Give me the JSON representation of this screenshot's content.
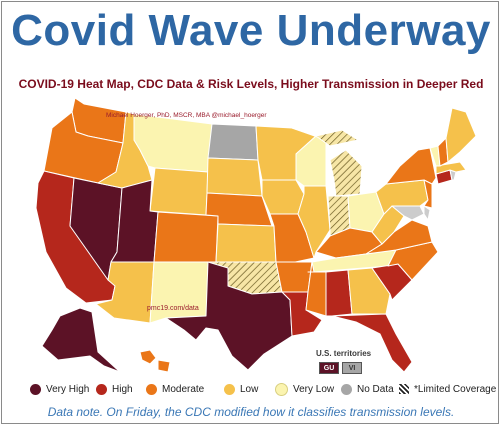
{
  "header": {
    "title": "Covid Wave Underway",
    "subtitle": "COVID-19 Heat Map, CDC Data & Risk Levels, Higher Transmission in Deeper Red"
  },
  "credit": "Michael Hoerger, PhD, MSCR, MBA  @michael_hoerger",
  "source": "pmc19.com/data",
  "colors": {
    "very_high": "#5c1226",
    "high": "#b5271c",
    "moderate": "#ea7618",
    "low": "#f5c14b",
    "very_low": "#fbf4b0",
    "no_data": "#a6a6a6",
    "hatch": "#7a6a2a"
  },
  "territories": {
    "label": "U.S. territories",
    "items": [
      {
        "code": "GU",
        "level": "very_high"
      },
      {
        "code": "VI",
        "level": "no_data"
      }
    ]
  },
  "legend": [
    {
      "label": "Very High",
      "level": "very_high"
    },
    {
      "label": "High",
      "level": "high"
    },
    {
      "label": "Moderate",
      "level": "moderate"
    },
    {
      "label": "Low",
      "level": "low"
    },
    {
      "label": "Very Low",
      "level": "very_low"
    },
    {
      "label": "No Data",
      "level": "no_data"
    },
    {
      "label": "*Limited Coverage",
      "level": "hatch"
    }
  ],
  "note": "Data note. On Friday, the CDC modified how it classifies transmission levels.",
  "states": {
    "WA": "moderate",
    "OR": "moderate",
    "CA": "high",
    "NV": "very_high",
    "ID": "low",
    "MT": "very_low",
    "WY": "low",
    "UT": "very_high",
    "AZ": "low",
    "CO": "moderate",
    "NM": "very_low",
    "ND": "no_data",
    "SD": "low",
    "NE": "moderate",
    "KS": "low",
    "OK": "limited",
    "TX": "very_high",
    "MN": "low",
    "IA": "low",
    "MO": "moderate",
    "AR": "moderate",
    "LA": "high",
    "WI": "very_low",
    "IL": "low",
    "MI": "limited",
    "IN": "limited",
    "OH": "very_low",
    "KY": "moderate",
    "TN": "very_low",
    "MS": "moderate",
    "AL": "high",
    "GA": "low",
    "FL": "high",
    "SC": "high",
    "NC": "moderate",
    "VA": "moderate",
    "WV": "low",
    "PA": "low",
    "NY": "moderate",
    "ME": "low",
    "NH": "moderate",
    "VT": "very_low",
    "MA": "low",
    "CT": "high",
    "NJ": "moderate",
    "AK": "very_high",
    "HI": "moderate"
  }
}
